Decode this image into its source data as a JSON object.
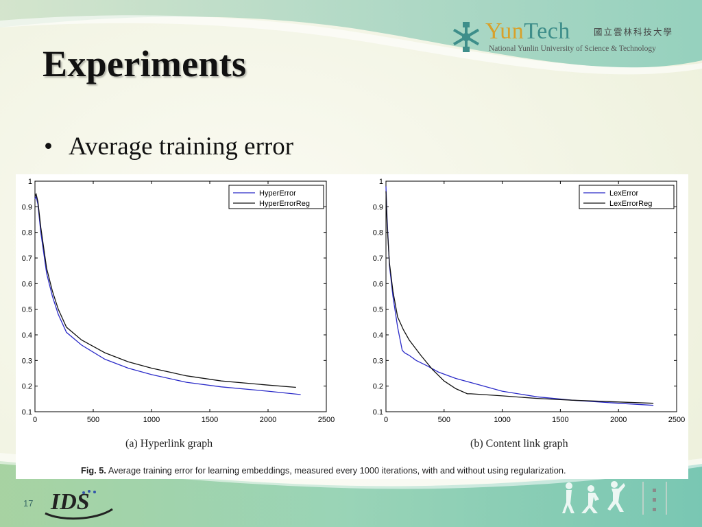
{
  "slide": {
    "title": "Experiments",
    "bullet": "Average training error",
    "page_number": "17"
  },
  "logo": {
    "brand_yun": "Yun",
    "brand_tech": "Tech",
    "chinese_name": "國立雲林科技大學",
    "english_name": "National Yunlin University of Science & Technology"
  },
  "footer_logo": {
    "text": "IDS"
  },
  "figure": {
    "caption_label": "Fig. 5.",
    "caption_text": "Average training error for learning embeddings, measured every 1000 iterations, with and without using regularization.",
    "colors": {
      "series1": "#2a2ac8",
      "series2": "#111111"
    }
  },
  "chart_data": [
    {
      "type": "line",
      "subtitle": "(a) Hyperlink graph",
      "xlim": [
        0,
        2500
      ],
      "ylim": [
        0.1,
        1
      ],
      "xticks": [
        0,
        500,
        1000,
        1500,
        2000,
        2500
      ],
      "yticks": [
        0.1,
        0.2,
        0.3,
        0.4,
        0.5,
        0.6,
        0.7,
        0.8,
        0.9,
        1
      ],
      "legend_position": "top-right",
      "series": [
        {
          "name": "HyperError",
          "color": "#2a2ac8",
          "x": [
            0,
            10,
            25,
            50,
            100,
            150,
            200,
            270,
            400,
            600,
            800,
            1000,
            1300,
            1600,
            2000,
            2280
          ],
          "y": [
            0.93,
            0.94,
            0.91,
            0.8,
            0.64,
            0.55,
            0.48,
            0.41,
            0.36,
            0.305,
            0.27,
            0.245,
            0.215,
            0.197,
            0.18,
            0.167
          ]
        },
        {
          "name": "HyperErrorReg",
          "color": "#111111",
          "x": [
            0,
            10,
            25,
            50,
            100,
            150,
            200,
            270,
            400,
            600,
            800,
            1000,
            1300,
            1600,
            2000,
            2240
          ],
          "y": [
            0.94,
            0.95,
            0.92,
            0.82,
            0.66,
            0.57,
            0.5,
            0.43,
            0.38,
            0.33,
            0.295,
            0.27,
            0.24,
            0.22,
            0.204,
            0.195
          ]
        }
      ]
    },
    {
      "type": "line",
      "subtitle": "(b) Content link graph",
      "xlim": [
        0,
        2500
      ],
      "ylim": [
        0.1,
        1
      ],
      "xticks": [
        0,
        500,
        1000,
        1500,
        2000,
        2500
      ],
      "yticks": [
        0.1,
        0.2,
        0.3,
        0.4,
        0.5,
        0.6,
        0.7,
        0.8,
        0.9,
        1
      ],
      "legend_position": "top-right",
      "series": [
        {
          "name": "LexError",
          "color": "#2a2ac8",
          "x": [
            0,
            10,
            30,
            60,
            100,
            140,
            160,
            200,
            260,
            350,
            450,
            600,
            800,
            1000,
            1300,
            1600,
            2000,
            2300
          ],
          "y": [
            0.98,
            0.85,
            0.67,
            0.55,
            0.43,
            0.34,
            0.33,
            0.32,
            0.3,
            0.28,
            0.255,
            0.23,
            0.205,
            0.18,
            0.158,
            0.145,
            0.133,
            0.125
          ]
        },
        {
          "name": "LexErrorReg",
          "color": "#111111",
          "x": [
            0,
            10,
            30,
            60,
            100,
            150,
            200,
            300,
            400,
            500,
            600,
            700,
            730,
            800,
            1000,
            1300,
            1600,
            2000,
            2300
          ],
          "y": [
            0.96,
            0.83,
            0.68,
            0.57,
            0.47,
            0.42,
            0.38,
            0.32,
            0.265,
            0.22,
            0.19,
            0.17,
            0.17,
            0.168,
            0.162,
            0.152,
            0.145,
            0.138,
            0.133
          ]
        }
      ]
    }
  ]
}
